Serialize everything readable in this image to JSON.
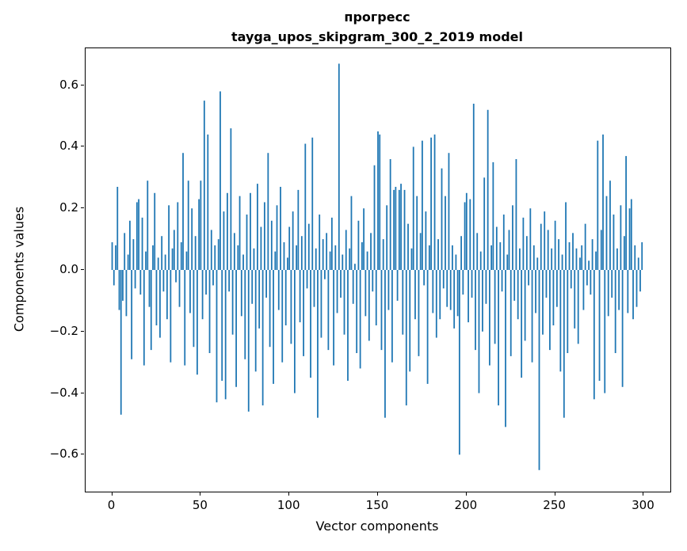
{
  "figure": {
    "title_line1": "прогресс",
    "title_line2": "tayga_upos_skipgram_300_2_2019 model",
    "xlabel": "Vector components",
    "ylabel": "Components values"
  },
  "chart_data": {
    "type": "bar",
    "title": "прогресс — tayga_upos_skipgram_300_2_2019 model",
    "xlabel": "Vector components",
    "ylabel": "Components values",
    "xlim": [
      -15,
      315
    ],
    "ylim": [
      -0.72,
      0.72
    ],
    "x_ticks": [
      0,
      50,
      100,
      150,
      200,
      250,
      300
    ],
    "y_ticks": [
      -0.6,
      -0.4,
      -0.2,
      0.0,
      0.2,
      0.4,
      0.6
    ],
    "bar_color": "#1f77b4",
    "grid": false,
    "legend": false,
    "values": [
      0.09,
      -0.05,
      0.08,
      0.27,
      -0.13,
      -0.47,
      -0.1,
      0.12,
      -0.15,
      0.05,
      0.16,
      -0.29,
      0.1,
      -0.06,
      0.22,
      0.23,
      -0.08,
      0.17,
      -0.31,
      0.06,
      0.29,
      -0.12,
      -0.26,
      0.08,
      0.25,
      -0.18,
      0.04,
      -0.22,
      0.11,
      -0.07,
      0.05,
      -0.16,
      0.21,
      -0.3,
      0.07,
      0.13,
      -0.04,
      0.22,
      -0.12,
      0.09,
      0.38,
      -0.31,
      0.06,
      0.29,
      -0.14,
      0.2,
      -0.25,
      0.11,
      -0.34,
      0.23,
      0.29,
      -0.16,
      0.55,
      -0.08,
      0.44,
      -0.27,
      0.13,
      -0.05,
      0.08,
      -0.43,
      0.1,
      0.58,
      -0.36,
      0.19,
      -0.42,
      0.25,
      -0.07,
      0.46,
      -0.21,
      0.12,
      -0.38,
      0.08,
      0.24,
      -0.15,
      0.05,
      -0.29,
      0.18,
      -0.46,
      0.25,
      -0.11,
      0.07,
      -0.33,
      0.28,
      -0.19,
      0.14,
      -0.44,
      0.22,
      -0.09,
      0.38,
      -0.25,
      0.16,
      -0.37,
      0.06,
      0.21,
      -0.13,
      0.27,
      -0.3,
      0.09,
      -0.18,
      0.04,
      0.14,
      -0.24,
      0.19,
      -0.4,
      0.08,
      0.26,
      -0.17,
      0.11,
      -0.28,
      0.41,
      -0.06,
      0.15,
      -0.35,
      0.43,
      -0.12,
      0.07,
      -0.48,
      0.18,
      -0.22,
      0.1,
      -0.03,
      0.12,
      -0.26,
      0.06,
      0.17,
      -0.31,
      0.08,
      -0.14,
      0.67,
      -0.09,
      0.05,
      -0.21,
      0.13,
      -0.36,
      0.07,
      0.24,
      -0.11,
      0.02,
      -0.27,
      0.16,
      -0.32,
      0.09,
      0.2,
      -0.15,
      0.06,
      -0.23,
      0.12,
      -0.07,
      0.34,
      -0.18,
      0.45,
      0.44,
      -0.26,
      0.1,
      -0.48,
      0.21,
      -0.13,
      0.36,
      -0.3,
      0.26,
      0.27,
      -0.1,
      0.26,
      0.28,
      -0.21,
      0.26,
      -0.44,
      0.15,
      -0.33,
      0.07,
      0.4,
      -0.16,
      0.24,
      -0.28,
      0.12,
      0.42,
      -0.05,
      0.19,
      -0.37,
      0.08,
      0.43,
      -0.14,
      0.44,
      -0.22,
      0.1,
      -0.16,
      0.33,
      -0.06,
      0.24,
      -0.12,
      0.38,
      -0.13,
      0.08,
      -0.19,
      0.05,
      -0.15,
      -0.6,
      0.11,
      -0.08,
      0.22,
      0.25,
      -0.17,
      0.23,
      -0.09,
      0.54,
      -0.26,
      0.12,
      -0.4,
      0.06,
      -0.2,
      0.3,
      -0.11,
      0.52,
      -0.31,
      0.08,
      0.35,
      -0.24,
      0.14,
      -0.44,
      0.09,
      -0.07,
      0.18,
      -0.51,
      0.05,
      0.13,
      -0.28,
      0.21,
      -0.1,
      0.36,
      -0.16,
      0.07,
      -0.35,
      0.17,
      -0.23,
      0.11,
      -0.05,
      0.2,
      -0.3,
      0.08,
      -0.14,
      0.04,
      -0.65,
      0.15,
      -0.21,
      0.19,
      -0.09,
      0.13,
      -0.26,
      0.07,
      -0.18,
      0.16,
      -0.12,
      0.1,
      -0.33,
      0.05,
      -0.48,
      0.22,
      -0.27,
      0.09,
      -0.06,
      0.12,
      -0.19,
      0.07,
      -0.24,
      0.04,
      0.08,
      -0.13,
      0.15,
      -0.05,
      0.03,
      -0.08,
      0.1,
      -0.42,
      0.06,
      0.42,
      -0.36,
      0.13,
      0.44,
      -0.4,
      0.24,
      -0.15,
      0.29,
      -0.09,
      0.18,
      -0.27,
      0.07,
      -0.13,
      0.21,
      -0.38,
      0.11,
      0.37,
      -0.14,
      0.2,
      0.23,
      -0.16,
      0.08,
      -0.12,
      0.04,
      -0.07,
      0.09
    ]
  }
}
